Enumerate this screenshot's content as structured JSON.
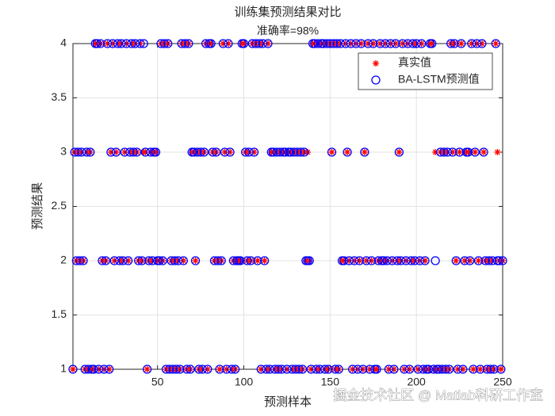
{
  "chart_data": {
    "type": "scatter",
    "title": "训练集预测结果对比",
    "subtitle": "准确率=98%",
    "xlabel": "预测样本",
    "ylabel": "预测结果",
    "watermark": "掘金技术社区 @ Matlab科研工作室",
    "xlim": [
      1,
      250
    ],
    "ylim": [
      1,
      4
    ],
    "xticks": [
      50,
      100,
      150,
      200,
      250
    ],
    "yticks": [
      1,
      1.5,
      2,
      2.5,
      3,
      3.5,
      4
    ],
    "grid": true,
    "legend": "northeast",
    "x": [
      1,
      2,
      3,
      4,
      5,
      6,
      7,
      8,
      9,
      10,
      11,
      12,
      13,
      14,
      15,
      16,
      17,
      18,
      19,
      20,
      21,
      22,
      23,
      24,
      25,
      26,
      27,
      28,
      29,
      30,
      31,
      32,
      33,
      34,
      35,
      36,
      37,
      38,
      39,
      40,
      41,
      42,
      43,
      44,
      45,
      46,
      47,
      48,
      49,
      50,
      51,
      52,
      53,
      54,
      55,
      56,
      57,
      58,
      59,
      60,
      61,
      62,
      63,
      64,
      65,
      66,
      67,
      68,
      69,
      70,
      71,
      72,
      73,
      74,
      75,
      76,
      77,
      78,
      79,
      80,
      81,
      82,
      83,
      84,
      85,
      86,
      87,
      88,
      89,
      90,
      91,
      92,
      93,
      94,
      95,
      96,
      97,
      98,
      99,
      100,
      101,
      102,
      103,
      104,
      105,
      106,
      107,
      108,
      109,
      110,
      111,
      112,
      113,
      114,
      115,
      116,
      117,
      118,
      119,
      120,
      121,
      122,
      123,
      124,
      125,
      126,
      127,
      128,
      129,
      130,
      131,
      132,
      133,
      134,
      135,
      136,
      137,
      138,
      139,
      140,
      141,
      142,
      143,
      144,
      145,
      146,
      147,
      148,
      149,
      150,
      151,
      152,
      153,
      154,
      155,
      156,
      157,
      158,
      159,
      160,
      161,
      162,
      163,
      164,
      165,
      166,
      167,
      168,
      169,
      170,
      171,
      172,
      173,
      174,
      175,
      176,
      177,
      178,
      179,
      180,
      181,
      182,
      183,
      184,
      185,
      186,
      187,
      188,
      189,
      190,
      191,
      192,
      193,
      194,
      195,
      196,
      197,
      198,
      199,
      200,
      201,
      202,
      203,
      204,
      205,
      206,
      207,
      208,
      209,
      210,
      211,
      212,
      213,
      214,
      215,
      216,
      217,
      218,
      219,
      220,
      221,
      222,
      223,
      224,
      225,
      226,
      227,
      228,
      229,
      230,
      231,
      232,
      233,
      234,
      235,
      236,
      237,
      238,
      239,
      240,
      241,
      242,
      243,
      244,
      245,
      246,
      247,
      248,
      249,
      250
    ],
    "series": [
      {
        "name": "真实值",
        "color": "#ff0000",
        "marker": "*",
        "values": [
          1,
          3,
          2,
          3,
          2,
          3,
          2,
          1,
          3,
          1,
          3,
          1,
          1,
          4,
          4,
          1,
          4,
          2,
          1,
          2,
          4,
          1,
          3,
          4,
          2,
          3,
          4,
          2,
          4,
          2,
          3,
          4,
          2,
          3,
          4,
          3,
          4,
          3,
          2,
          4,
          2,
          3,
          3,
          1,
          2,
          3,
          2,
          3,
          3,
          2,
          2,
          4,
          2,
          4,
          1,
          4,
          1,
          2,
          1,
          2,
          1,
          2,
          1,
          4,
          2,
          4,
          1,
          4,
          1,
          3,
          3,
          2,
          3,
          1,
          3,
          1,
          3,
          4,
          1,
          4,
          4,
          3,
          2,
          3,
          2,
          1,
          2,
          4,
          3,
          1,
          4,
          3,
          1,
          2,
          1,
          2,
          2,
          2,
          4,
          4,
          3,
          2,
          3,
          2,
          4,
          3,
          4,
          2,
          4,
          1,
          4,
          2,
          1,
          4,
          1,
          3,
          3,
          1,
          3,
          1,
          3,
          1,
          3,
          3,
          1,
          3,
          3,
          1,
          3,
          1,
          3,
          1,
          3,
          1,
          3,
          2,
          3,
          2,
          1,
          4,
          4,
          1,
          4,
          1,
          4,
          4,
          1,
          4,
          1,
          4,
          3,
          4,
          1,
          4,
          1,
          4,
          2,
          2,
          4,
          3,
          2,
          4,
          1,
          2,
          4,
          1,
          2,
          4,
          1,
          3,
          2,
          4,
          1,
          2,
          4,
          1,
          1,
          2,
          4,
          2,
          2,
          4,
          2,
          1,
          4,
          2,
          1,
          4,
          2,
          3,
          2,
          4,
          1,
          2,
          4,
          1,
          2,
          4,
          2,
          4,
          1,
          2,
          4,
          1,
          2,
          1,
          1,
          4,
          4,
          1,
          3,
          1,
          1,
          3,
          1,
          3,
          1,
          3,
          1,
          4,
          3,
          4,
          2,
          1,
          3,
          4,
          1,
          2,
          3,
          3,
          2,
          4,
          1,
          3,
          4,
          2,
          1,
          4,
          3,
          2,
          1,
          2,
          1,
          2,
          1,
          4,
          3,
          2,
          1,
          2
        ]
      },
      {
        "name": "BA-LSTM预测值",
        "color": "#0000ff",
        "marker": "o",
        "values": [
          1,
          3,
          2,
          3,
          2,
          3,
          2,
          1,
          3,
          1,
          3,
          1,
          1,
          4,
          4,
          1,
          4,
          2,
          1,
          2,
          4,
          1,
          3,
          4,
          2,
          3,
          4,
          2,
          4,
          2,
          3,
          4,
          2,
          3,
          4,
          3,
          4,
          3,
          2,
          4,
          2,
          4,
          3,
          1,
          2,
          3,
          2,
          3,
          3,
          2,
          2,
          4,
          2,
          4,
          1,
          4,
          1,
          2,
          1,
          2,
          1,
          2,
          1,
          4,
          2,
          4,
          1,
          4,
          1,
          3,
          3,
          2,
          3,
          1,
          3,
          1,
          3,
          4,
          1,
          4,
          4,
          3,
          2,
          3,
          2,
          1,
          2,
          4,
          3,
          1,
          4,
          3,
          1,
          2,
          1,
          2,
          2,
          2,
          4,
          4,
          3,
          2,
          3,
          2,
          4,
          3,
          4,
          2,
          4,
          1,
          4,
          2,
          1,
          4,
          1,
          3,
          3,
          1,
          3,
          1,
          3,
          1,
          3,
          3,
          1,
          3,
          3,
          1,
          3,
          1,
          3,
          1,
          3,
          1,
          3,
          2,
          2,
          2,
          1,
          4,
          4,
          1,
          4,
          1,
          4,
          4,
          1,
          4,
          1,
          4,
          3,
          4,
          1,
          4,
          1,
          4,
          2,
          2,
          4,
          3,
          2,
          4,
          1,
          2,
          4,
          1,
          2,
          4,
          1,
          3,
          2,
          4,
          1,
          2,
          4,
          1,
          1,
          2,
          4,
          2,
          2,
          4,
          2,
          1,
          4,
          2,
          1,
          4,
          2,
          3,
          2,
          4,
          1,
          2,
          4,
          1,
          2,
          4,
          2,
          4,
          1,
          2,
          4,
          1,
          2,
          1,
          1,
          4,
          4,
          1,
          2,
          1,
          1,
          3,
          1,
          3,
          1,
          3,
          1,
          4,
          3,
          4,
          2,
          1,
          3,
          4,
          1,
          2,
          3,
          3,
          2,
          4,
          1,
          3,
          4,
          2,
          1,
          4,
          3,
          2,
          1,
          2,
          1,
          2,
          1,
          4,
          2,
          2,
          1,
          2
        ]
      }
    ]
  }
}
